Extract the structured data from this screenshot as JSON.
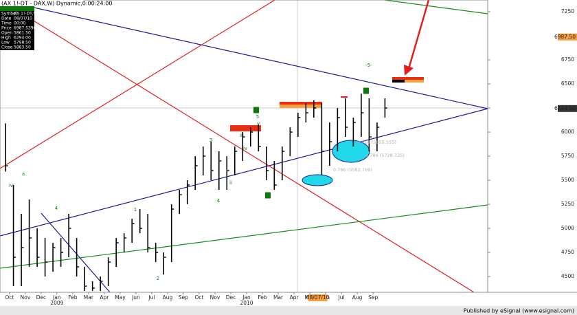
{
  "chart_data": {
    "type": "hlc",
    "title": "(AX 1!-DT - DAX,W) Dynamic,0:00:24:00",
    "high": [
      6090,
      5450,
      5150,
      5300,
      5000,
      4900,
      4850,
      4900,
      5150,
      4900,
      4600,
      4450,
      4500,
      4700,
      4900,
      4950,
      5100,
      5200,
      5150,
      4850,
      4750,
      5250,
      5400,
      5500,
      5750,
      5850,
      5900,
      5800,
      5750,
      5850,
      6000,
      6050,
      6080,
      5850,
      5700,
      5850,
      6050,
      6200,
      6300,
      6330,
      6300,
      6100,
      6250,
      6350,
      6150,
      6400,
      6350,
      6100,
      6350
    ],
    "low": [
      5590,
      4400,
      4400,
      4600,
      4600,
      4500,
      4550,
      4600,
      4700,
      4500,
      4350,
      4350,
      4350,
      4400,
      4600,
      4750,
      4850,
      4950,
      4750,
      4650,
      4520,
      4650,
      5150,
      5250,
      5400,
      5550,
      5500,
      5400,
      5400,
      5550,
      5700,
      5850,
      5800,
      5500,
      5400,
      5500,
      5750,
      5950,
      6100,
      6150,
      5550,
      5650,
      5800,
      5950,
      5850,
      5950,
      5800,
      5800,
      6150
    ],
    "close": [
      5650,
      4700,
      4800,
      4900,
      4700,
      4650,
      4800,
      4750,
      5000,
      4600,
      4400,
      4380,
      4450,
      4650,
      4850,
      4900,
      5050,
      5000,
      4800,
      4750,
      4700,
      5200,
      5350,
      5450,
      5650,
      5750,
      5600,
      5700,
      5600,
      5800,
      5950,
      6000,
      5850,
      5600,
      5450,
      5800,
      6000,
      6150,
      6200,
      6250,
      5800,
      5900,
      6150,
      6050,
      6100,
      6200,
      5950,
      6050,
      6250
    ],
    "color": "#000000",
    "xlim": [
      -0.7,
      61
    ],
    "xticks": [
      {
        "value": 0.5,
        "label": "Oct"
      },
      {
        "value": 2.5,
        "label": "Nov"
      },
      {
        "value": 4.5,
        "label": "Dec"
      },
      {
        "value": 6.5,
        "label": "Jan"
      },
      {
        "value": 8.5,
        "label": "Feb"
      },
      {
        "value": 10.5,
        "label": "Mar"
      },
      {
        "value": 12.5,
        "label": "Apr"
      },
      {
        "value": 14.5,
        "label": "May"
      },
      {
        "value": 16.5,
        "label": "Jun"
      },
      {
        "value": 18.5,
        "label": "Jul"
      },
      {
        "value": 20.5,
        "label": "Aug"
      },
      {
        "value": 22.5,
        "label": "Sep"
      },
      {
        "value": 24.5,
        "label": "Oct"
      },
      {
        "value": 26.5,
        "label": "Nov"
      },
      {
        "value": 28.5,
        "label": "Dec"
      },
      {
        "value": 30.5,
        "label": "Jan"
      },
      {
        "value": 32.5,
        "label": "Feb"
      },
      {
        "value": 34.5,
        "label": "Mar"
      },
      {
        "value": 36.5,
        "label": "Apr"
      },
      {
        "value": 38.5,
        "label": "May"
      },
      {
        "value": 40.5,
        "label": "Jun"
      },
      {
        "value": 42.5,
        "label": "Jul"
      },
      {
        "value": 44.5,
        "label": "Aug"
      },
      {
        "value": 46.5,
        "label": "Sep"
      }
    ],
    "year_labels": [
      {
        "value": 6.5,
        "label": "2009"
      },
      {
        "value": 30.5,
        "label": "2010"
      }
    ],
    "cursor_date": {
      "value": 39.5,
      "label": "08/07/10"
    },
    "ylim": [
      4336,
      7336
    ],
    "yticks": [
      4500,
      4750,
      5000,
      5250,
      5500,
      5750,
      6000,
      6250,
      6500,
      6750,
      7250
    ],
    "highlight_ticks": [
      {
        "value": 6987.5,
        "label": "6987.50",
        "color": "#f5a040"
      },
      {
        "value": 6244.5,
        "label": "6244.50",
        "color": "#333333"
      }
    ],
    "annotations": [
      "3",
      "5",
      "v",
      "iii",
      "iv",
      "3",
      "ii",
      "4",
      "4",
      "5",
      "4",
      "1",
      "2",
      "a",
      "iv",
      "-5-",
      "0.618 (5855.555)",
      "0.786 (5728.735)",
      "0.786 (5582.769)"
    ]
  },
  "data_window": [
    [
      "Symbol",
      "AX 1!-DT,W"
    ],
    [
      "Date",
      "08/07/10"
    ],
    [
      "Time",
      "00:00"
    ],
    [
      "Price",
      "6987.53964"
    ],
    [
      "Open",
      "5861.50"
    ],
    [
      "High",
      "6294.00"
    ],
    [
      "Low",
      "5798.50"
    ],
    [
      "Close",
      "5883.50"
    ]
  ],
  "footer": "Published by eSignal (www.esignal.com)"
}
